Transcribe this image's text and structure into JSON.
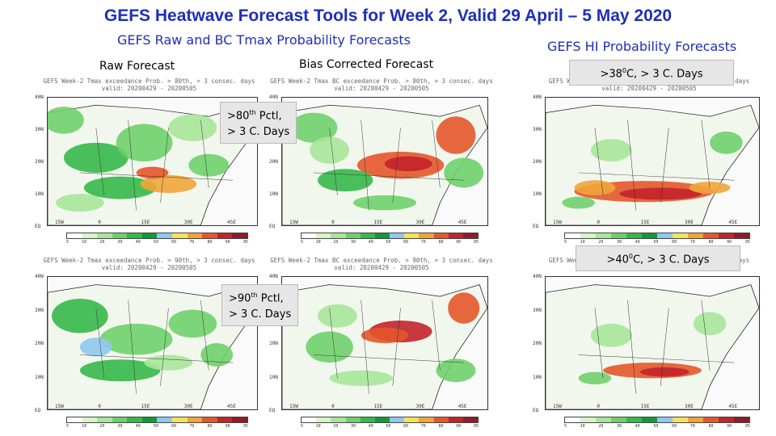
{
  "title": "GEFS Heatwave Forecast Tools for Week 2, Valid 29 April – 5 May 2020",
  "section_left": "GEFS Raw and BC Tmax Probability Forecasts",
  "section_right": "GEFS HI Probability Forecasts",
  "label_raw": "Raw Forecast",
  "label_bc": "Bias Corrected  Forecast",
  "callouts": {
    "p80_line1_pre": ">80",
    "p80_line1_sup": "th",
    "p80_line1_post": " Pctl,",
    "p80_line2": "> 3 C. Days",
    "p90_line1_pre": ">90",
    "p90_line1_sup": "th",
    "p90_line1_post": " Pctl,",
    "p90_line2": "> 3 C. Days",
    "hi38_pre": ">38",
    "hi38_sup": "0",
    "hi38_post": "C, > 3 C. Days",
    "hi40_pre": ">40",
    "hi40_sup": "0",
    "hi40_post": "C, > 3 C. Days"
  },
  "panels": {
    "raw80_title": "GEFS Week-2 Tmax exceedance Prob. > 80th, > 3 consec. days",
    "raw80_valid": "valid: 20200429 - 20200505",
    "bc80_title": "GEFS Week-2 Tmax BC exceedance Prob. > 80th, > 3 consec. days",
    "bc80_valid": "valid: 20200429 - 20200505",
    "hi38_title": "GEFS Week-2 HI exceedance Prob. > 38C, > 3 consec. days",
    "hi38_valid": "valid: 20200429 - 20200505",
    "raw90_title": "GEFS Week-2 Tmax exceedance Prob. > 90th, > 3 consec. days",
    "raw90_valid": "valid: 20200429 - 20200505",
    "bc90_title": "GEFS Week-2 Tmax BC exceedance Prob. > 90th, > 3 consec. days",
    "bc90_valid": "valid: 20200429 - 20200505",
    "hi40_title": "GEFS Week-2 HI exceedance Prob. > 40C, > 3 consec. days",
    "hi40_valid": "valid: 20200429 - 20200505"
  },
  "axes": {
    "lat": [
      "40N",
      "30N",
      "20N",
      "10N",
      "EQ"
    ],
    "lon": [
      "15W",
      "0",
      "15E",
      "30E",
      "45E"
    ],
    "colorbar_ticks": [
      "5",
      "10",
      "20",
      "30",
      "40",
      "50",
      "60",
      "70",
      "80",
      "90",
      "95"
    ]
  },
  "colors": {
    "title_blue": "#1f2fb8",
    "colorbar": [
      "#ffffff",
      "#d8f5c8",
      "#a8e69a",
      "#6fd06a",
      "#36b84a",
      "#0f9a3b",
      "#8fc8f0",
      "#f5e35a",
      "#f0a53a",
      "#e4572a",
      "#c2242a",
      "#8e1a2a"
    ]
  }
}
